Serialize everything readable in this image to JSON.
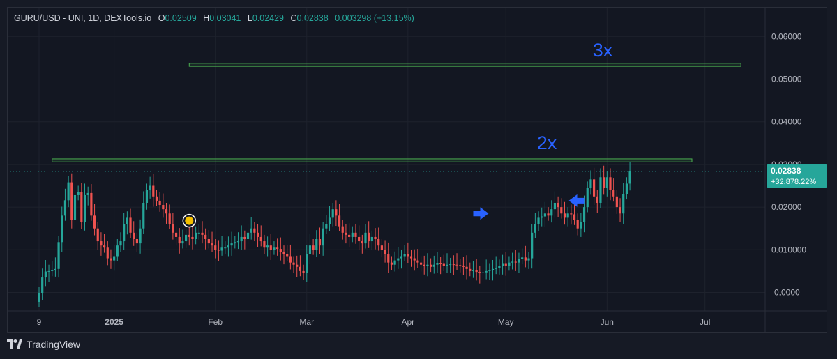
{
  "app": {
    "brand": "TradingView"
  },
  "legend": {
    "symbol": "GURU/USD - UNI, 1D, DEXTools.io",
    "open_label": "O",
    "open": "0.02509",
    "high_label": "H",
    "high": "0.03041",
    "low_label": "L",
    "low": "0.02429",
    "close_label": "C",
    "close": "0.02838",
    "change": "0.003298 (+13.15%)"
  },
  "price_badge": {
    "price": "0.02838",
    "change": "+32,878.22%"
  },
  "annotations": {
    "level_2x": "2x",
    "level_3x": "3x"
  },
  "colors": {
    "up": "#26a69a",
    "down": "#ef5350",
    "background": "#131722",
    "grid": "#1e222d",
    "axis_text": "#b2b5be",
    "zone": "#4caf50",
    "annotation": "#2962ff"
  },
  "chart_data": {
    "type": "candlestick",
    "x_ticks": [
      "9",
      "2025",
      "Feb",
      "Mar",
      "Apr",
      "May",
      "Jun",
      "Jul"
    ],
    "y_ticks": [
      "0.06000",
      "0.05000",
      "0.04000",
      "0.03000",
      "0.02000",
      "0.010000",
      "-0.0000"
    ],
    "ylim": [
      -0.003,
      0.0695
    ],
    "current_price": 0.02838,
    "zones": [
      {
        "label": "2x",
        "low": 0.0306,
        "high": 0.0313,
        "start": "2024-12-13",
        "end": "2025-06-27"
      },
      {
        "label": "3x",
        "low": 0.053,
        "high": 0.0537,
        "start": "2025-01-24",
        "end": "2025-07-12"
      }
    ],
    "arrows": [
      {
        "date": "2025-04-24",
        "price": 0.0185,
        "direction": "right"
      },
      {
        "date": "2025-05-22",
        "price": 0.0215,
        "direction": "left"
      }
    ],
    "highlight_marker": {
      "date": "2025-01-24",
      "price": 0.0168
    },
    "date_start": "2024-12-09",
    "closes": [
      -0.0002,
      0.0035,
      0.0049,
      0.005,
      0.0053,
      0.0055,
      0.0118,
      0.018,
      0.0216,
      0.0258,
      0.017,
      0.0228,
      0.0235,
      0.0165,
      0.0228,
      0.0233,
      0.018,
      0.015,
      0.012,
      0.011,
      0.0105,
      0.008,
      0.0075,
      0.0085,
      0.011,
      0.012,
      0.016,
      0.0175,
      0.014,
      0.0125,
      0.0115,
      0.015,
      0.021,
      0.024,
      0.025,
      0.0225,
      0.0215,
      0.0205,
      0.0195,
      0.0185,
      0.016,
      0.014,
      0.013,
      0.0115,
      0.012,
      0.0135,
      0.013,
      0.0125,
      0.014,
      0.014,
      0.0135,
      0.0125,
      0.0115,
      0.011,
      0.01,
      0.0098,
      0.0105,
      0.0105,
      0.011,
      0.0115,
      0.0118,
      0.012,
      0.013,
      0.0125,
      0.014,
      0.015,
      0.014,
      0.013,
      0.012,
      0.0105,
      0.011,
      0.01,
      0.0105,
      0.0102,
      0.0095,
      0.009,
      0.0085,
      0.007,
      0.0065,
      0.006,
      0.005,
      0.0045,
      0.009,
      0.011,
      0.01,
      0.0125,
      0.011,
      0.015,
      0.016,
      0.0175,
      0.0195,
      0.018,
      0.0155,
      0.014,
      0.0135,
      0.013,
      0.014,
      0.013,
      0.012,
      0.0115,
      0.014,
      0.012,
      0.013,
      0.0125,
      0.011,
      0.01,
      0.009,
      0.007,
      0.0065,
      0.0075,
      0.008,
      0.0085,
      0.009,
      0.0085,
      0.008,
      0.0075,
      0.007,
      0.0065,
      0.0062,
      0.0065,
      0.006,
      0.0065,
      0.0068,
      0.0067,
      0.0062,
      0.0065,
      0.0066,
      0.0065,
      0.0064,
      0.0063,
      0.006,
      0.0055,
      0.005,
      0.0052,
      0.0048,
      0.0045,
      0.0047,
      0.005,
      0.0052,
      0.0055,
      0.0058,
      0.0062,
      0.0067,
      0.0063,
      0.007,
      0.0072,
      0.007,
      0.0078,
      0.0082,
      0.0075,
      0.008,
      0.014,
      0.016,
      0.0175,
      0.0178,
      0.0185,
      0.018,
      0.0195,
      0.021,
      0.02,
      0.0185,
      0.0175,
      0.0185,
      0.0183,
      0.017,
      0.015,
      0.0165,
      0.02,
      0.0245,
      0.0265,
      0.0225,
      0.021,
      0.027,
      0.0245,
      0.027,
      0.024,
      0.0225,
      0.02,
      0.0185,
      0.023,
      0.0255,
      0.0284
    ]
  }
}
